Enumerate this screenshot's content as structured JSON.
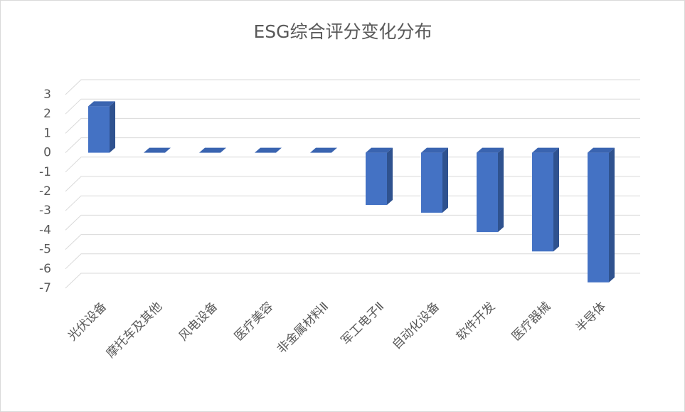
{
  "chart_data": {
    "type": "bar",
    "title": "ESG综合评分变化分布",
    "categories": [
      "光伏设备",
      "摩托车及其他",
      "风电设备",
      "医疗美容",
      "非金属材料Ⅱ",
      "军工电子Ⅱ",
      "自动化设备",
      "软件开发",
      "医疗器械",
      "半导体"
    ],
    "values": [
      2.4,
      0,
      0,
      0,
      0,
      -2.7,
      -3.1,
      -4.1,
      -5.1,
      -6.7
    ],
    "color": "#4472c4",
    "ylim": [
      -7,
      3
    ],
    "yticks": [
      3,
      2,
      1,
      0,
      -1,
      -2,
      -3,
      -4,
      -5,
      -6,
      -7
    ],
    "grid": true
  }
}
